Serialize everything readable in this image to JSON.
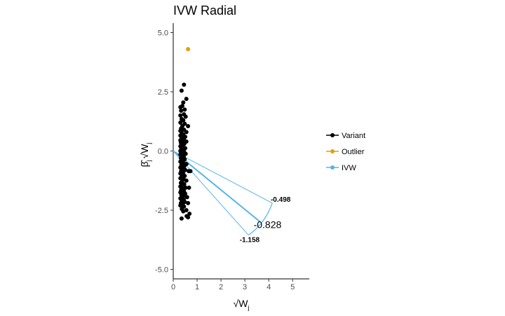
{
  "chart_data": {
    "type": "scatter",
    "title": "IVW Radial",
    "xlim": [
      0,
      5.7
    ],
    "ylim": [
      -5.4,
      5.4
    ],
    "x_ticks": [
      0,
      1,
      2,
      3,
      4,
      5
    ],
    "y_ticks": [
      5.0,
      2.5,
      0.0,
      -2.5,
      -5.0
    ],
    "y_tick_labels": [
      "5.0",
      "2.5",
      "0.0",
      "-2.5",
      "-5.0"
    ],
    "grid": false,
    "legend_position": "right",
    "legend": [
      {
        "label": "Variant",
        "color": "#000000"
      },
      {
        "label": "Outlier",
        "color": "#E69F00"
      },
      {
        "label": "IVW",
        "color": "#56B4E9"
      }
    ],
    "series": [
      {
        "name": "Variant",
        "color": "#000000",
        "points": [
          [
            0.45,
            2.8
          ],
          [
            0.35,
            2.55
          ],
          [
            0.55,
            2.2
          ],
          [
            0.42,
            2.05
          ],
          [
            0.3,
            1.85
          ],
          [
            0.38,
            1.9
          ],
          [
            0.48,
            1.75
          ],
          [
            0.33,
            1.7
          ],
          [
            0.45,
            1.55
          ],
          [
            0.3,
            1.5
          ],
          [
            0.52,
            1.45
          ],
          [
            0.35,
            1.35
          ],
          [
            0.42,
            1.3
          ],
          [
            0.3,
            1.2
          ],
          [
            0.48,
            1.15
          ],
          [
            0.38,
            1.05
          ],
          [
            0.62,
            1.05
          ],
          [
            0.33,
            0.95
          ],
          [
            0.45,
            0.9
          ],
          [
            0.3,
            0.85
          ],
          [
            0.55,
            0.8
          ],
          [
            0.36,
            0.75
          ],
          [
            0.42,
            0.7
          ],
          [
            0.3,
            0.65
          ],
          [
            0.5,
            0.6
          ],
          [
            0.35,
            0.55
          ],
          [
            0.44,
            0.5
          ],
          [
            0.3,
            0.45
          ],
          [
            0.38,
            0.4
          ],
          [
            0.55,
            0.4
          ],
          [
            0.32,
            0.35
          ],
          [
            0.46,
            0.3
          ],
          [
            0.36,
            0.25
          ],
          [
            0.3,
            0.2
          ],
          [
            0.42,
            0.15
          ],
          [
            0.5,
            0.12
          ],
          [
            0.34,
            0.1
          ],
          [
            0.38,
            0.05
          ],
          [
            0.3,
            0.0
          ],
          [
            0.45,
            -0.02
          ],
          [
            0.33,
            -0.05
          ],
          [
            0.4,
            -0.1
          ],
          [
            0.52,
            -0.12
          ],
          [
            0.3,
            -0.15
          ],
          [
            0.36,
            -0.2
          ],
          [
            0.44,
            -0.25
          ],
          [
            0.32,
            -0.3
          ],
          [
            0.48,
            -0.35
          ],
          [
            0.38,
            -0.4
          ],
          [
            0.3,
            -0.45
          ],
          [
            0.42,
            -0.5
          ],
          [
            0.55,
            -0.55
          ],
          [
            0.34,
            -0.6
          ],
          [
            0.46,
            -0.65
          ],
          [
            0.3,
            -0.7
          ],
          [
            0.38,
            -0.75
          ],
          [
            0.5,
            -0.8
          ],
          [
            0.33,
            -0.85
          ],
          [
            0.42,
            -0.9
          ],
          [
            0.65,
            -0.85
          ],
          [
            0.72,
            -0.85
          ],
          [
            0.3,
            -0.95
          ],
          [
            0.4,
            -1.0
          ],
          [
            0.48,
            -1.05
          ],
          [
            0.35,
            -1.1
          ],
          [
            0.3,
            -1.15
          ],
          [
            0.44,
            -1.2
          ],
          [
            0.55,
            -1.25
          ],
          [
            0.36,
            -1.3
          ],
          [
            0.32,
            -1.35
          ],
          [
            0.46,
            -1.4
          ],
          [
            0.38,
            -1.45
          ],
          [
            0.3,
            -1.5
          ],
          [
            0.52,
            -1.55
          ],
          [
            0.66,
            -1.55
          ],
          [
            0.4,
            -1.6
          ],
          [
            0.33,
            -1.65
          ],
          [
            0.45,
            -1.7
          ],
          [
            0.3,
            -1.75
          ],
          [
            0.38,
            -1.8
          ],
          [
            0.5,
            -1.8
          ],
          [
            0.34,
            -1.85
          ],
          [
            0.42,
            -1.9
          ],
          [
            0.58,
            -1.95
          ],
          [
            0.3,
            -2.0
          ],
          [
            0.44,
            -2.05
          ],
          [
            0.36,
            -2.1
          ],
          [
            0.48,
            -2.15
          ],
          [
            0.32,
            -2.2
          ],
          [
            0.4,
            -2.25
          ],
          [
            0.3,
            -2.3
          ],
          [
            0.45,
            -2.35
          ],
          [
            0.62,
            -2.2
          ],
          [
            0.36,
            -2.45
          ],
          [
            0.55,
            -2.5
          ],
          [
            0.42,
            -2.55
          ],
          [
            0.68,
            -2.65
          ],
          [
            0.56,
            -2.75
          ],
          [
            0.62,
            -2.8
          ],
          [
            0.35,
            -2.85
          ]
        ]
      },
      {
        "name": "Outlier",
        "color": "#E69F00",
        "points": [
          [
            0.62,
            4.3
          ]
        ]
      }
    ],
    "ivw_line": {
      "color": "#56B4E9",
      "from": [
        0,
        0
      ],
      "to": [
        3.65,
        -3.0
      ],
      "arc_from": [
        3.15,
        -3.55
      ],
      "arc_to": [
        4.15,
        -2.2
      ]
    },
    "annotations": [
      {
        "text": "-0.498",
        "x": 4.5,
        "y": -2.15,
        "size": "small"
      },
      {
        "text": "-0.828",
        "x": 3.95,
        "y": -3.25,
        "size": "big"
      },
      {
        "text": "-1.158",
        "x": 3.2,
        "y": -3.85,
        "size": "small"
      }
    ]
  }
}
